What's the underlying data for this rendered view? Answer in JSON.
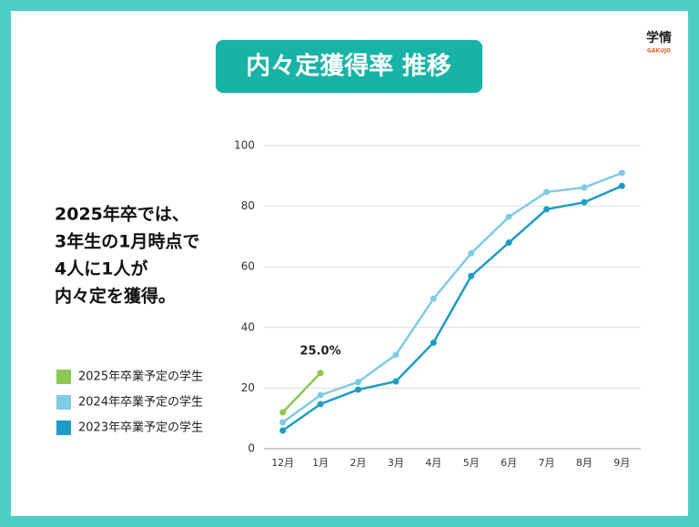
{
  "logo": {
    "name": "学情",
    "sub": "GAKUJO"
  },
  "note": [
    "2025年卒では、",
    "3年生の1月時点で",
    "4人に1人が",
    "内々定を獲得。"
  ],
  "chart_data": {
    "type": "line",
    "title": "内々定獲得率 推移",
    "categories": [
      "12月",
      "1月",
      "2月",
      "3月",
      "4月",
      "5月",
      "6月",
      "7月",
      "8月",
      "9月"
    ],
    "series": [
      {
        "name": "2025年卒業予定の学生",
        "color": "#8cc850",
        "values": [
          12,
          25.0,
          null,
          null,
          null,
          null,
          null,
          null,
          null,
          null
        ],
        "value_labels": [
          null,
          "25.0%",
          null,
          null,
          null,
          null,
          null,
          null,
          null,
          null
        ]
      },
      {
        "name": "2024年卒業予定の学生",
        "color": "#7ecbe3",
        "values": [
          8.7,
          17.7,
          22,
          31,
          49.5,
          64.5,
          76.5,
          84.7,
          86.2,
          91
        ]
      },
      {
        "name": "2023年卒業予定の学生",
        "color": "#1d9dc6",
        "values": [
          6,
          14.7,
          19.5,
          22.2,
          35,
          57,
          68,
          79,
          81.3,
          86.7
        ]
      }
    ],
    "ylim": [
      0,
      100
    ],
    "yticks": [
      0,
      20,
      40,
      60,
      80,
      100
    ],
    "grid": true,
    "legend": "left"
  }
}
